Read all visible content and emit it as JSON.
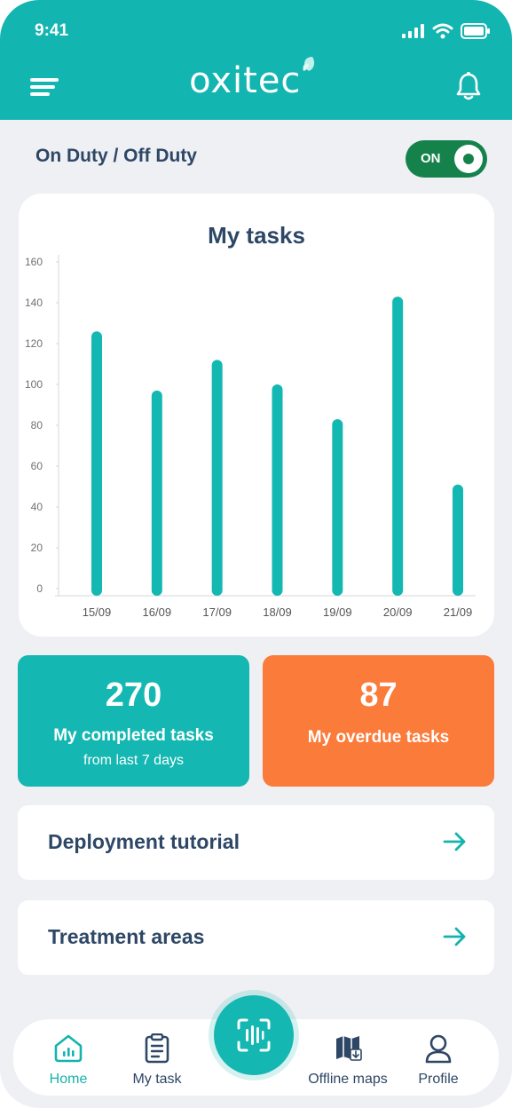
{
  "status_bar": {
    "time": "9:41"
  },
  "header": {
    "brand": "oxitec"
  },
  "duty": {
    "label": "On Duty / Off Duty",
    "toggle_label": "ON"
  },
  "chart_card": {
    "title": "My tasks"
  },
  "chart_data": {
    "type": "bar",
    "title": "My tasks",
    "categories": [
      "15/09",
      "16/09",
      "17/09",
      "18/09",
      "19/09",
      "20/09",
      "21/09"
    ],
    "values": [
      126,
      97,
      112,
      100,
      83,
      143,
      51
    ],
    "ylim": [
      0,
      160
    ],
    "yticks": [
      0,
      20,
      40,
      60,
      80,
      100,
      120,
      140,
      160
    ],
    "xlabel": "",
    "ylabel": "",
    "grid": false,
    "color": "#14b8b2"
  },
  "stats": {
    "completed": {
      "value": "270",
      "label": "My completed tasks",
      "sub": "from last 7 days"
    },
    "overdue": {
      "value": "87",
      "label": "My overdue tasks"
    }
  },
  "links": [
    {
      "label": "Deployment tutorial"
    },
    {
      "label": "Treatment areas"
    }
  ],
  "nav": {
    "home": "Home",
    "my_task": "My task",
    "offline_maps": "Offline maps",
    "profile": "Profile"
  },
  "colors": {
    "accent": "#13b5b0",
    "overdue": "#fb7b3b",
    "toggle_on": "#15824c",
    "text_dark": "#2e4766"
  },
  "icons": [
    "menu-icon",
    "bell-icon",
    "arrow-right-icon",
    "home-icon",
    "clipboard-icon",
    "scan-icon",
    "map-icon",
    "user-icon"
  ]
}
